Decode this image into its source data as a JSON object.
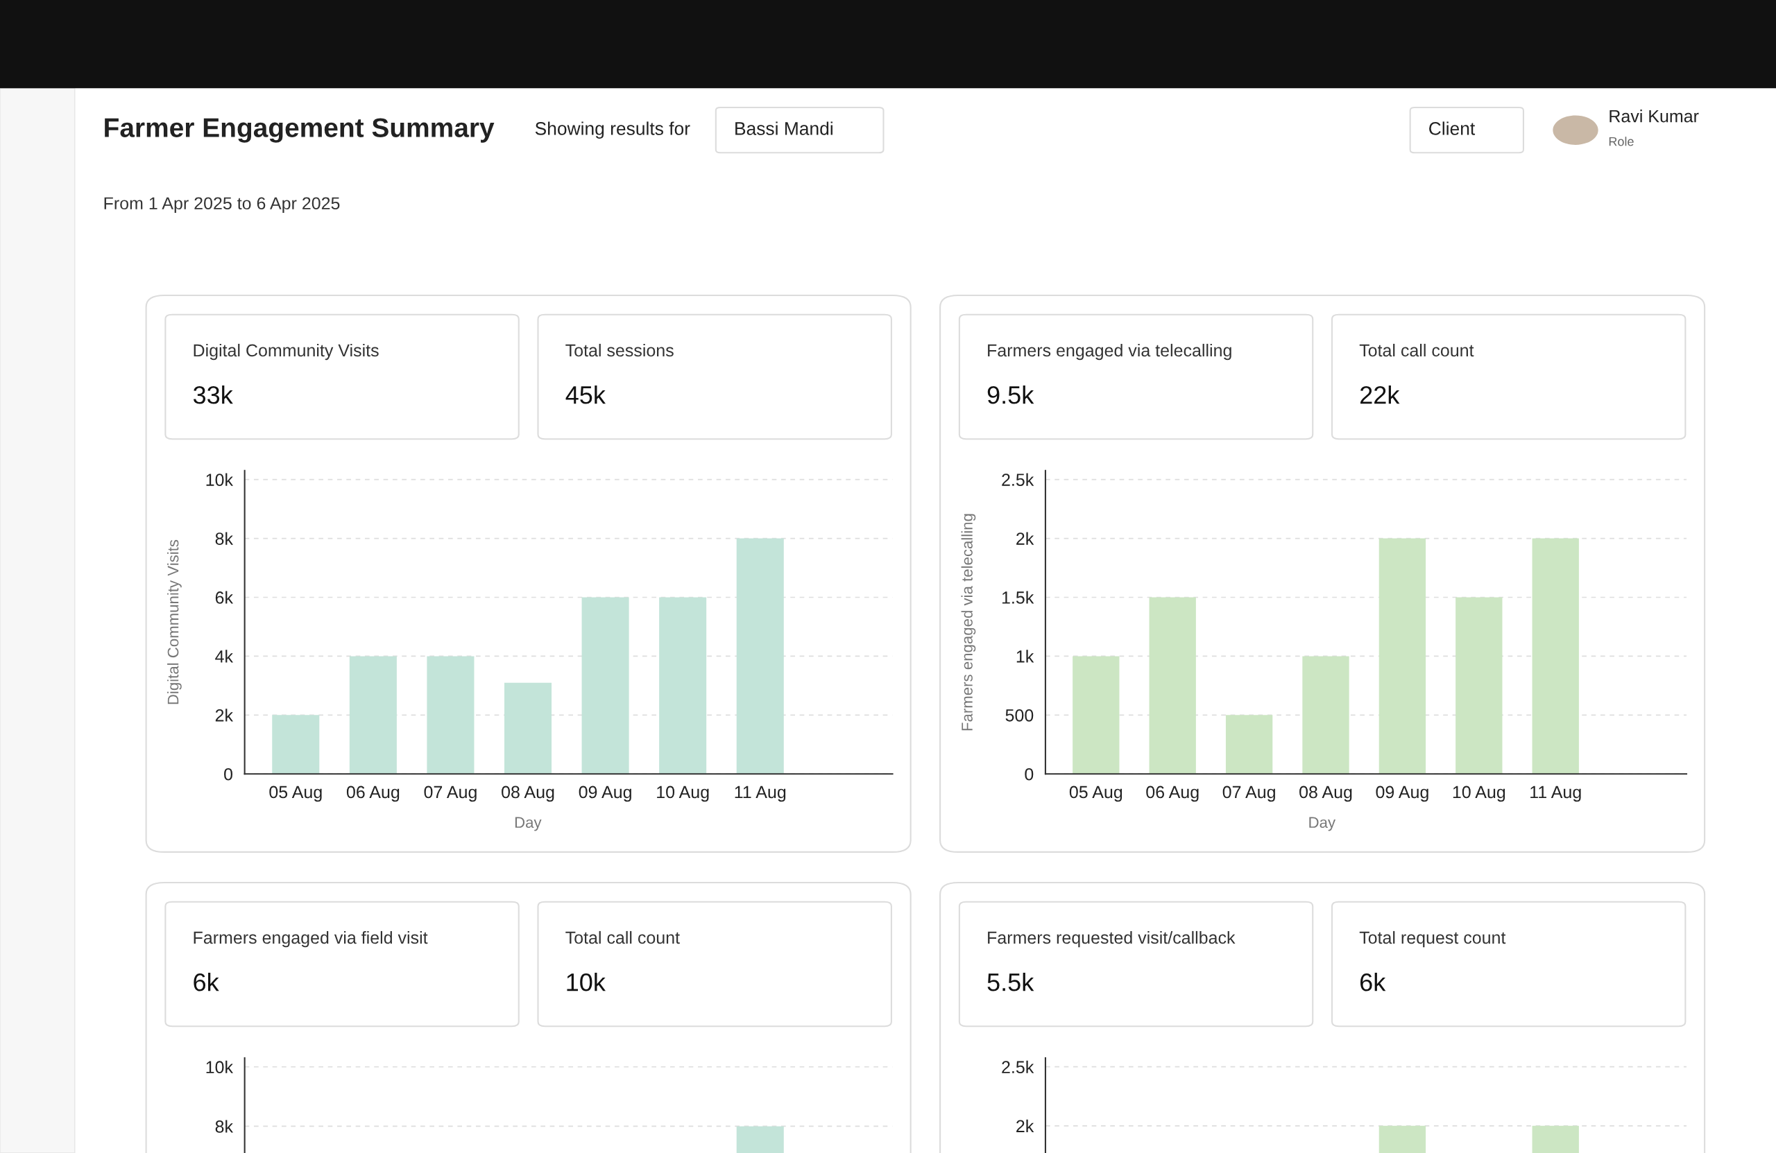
{
  "chart_data": [
    {
      "type": "other",
      "title": "Farmer Engagement Summary",
      "annotations": [
        "Showing results for",
        "Bassi Mandi",
        "Client",
        "Ravi Kumar",
        "Role",
        "From 1 Apr 2025 to 6 Apr 2025"
      ]
    },
    {
      "type": "bar",
      "annotations": [
        "Digital Community Visits",
        "33k",
        "Total sessions",
        "45k"
      ],
      "categories": [
        "05 Aug",
        "06 Aug",
        "07 Aug",
        "08 Aug",
        "09 Aug",
        "10 Aug",
        "11 Aug"
      ],
      "values": [
        2000,
        4000,
        4000,
        3100,
        6000,
        6000,
        8000
      ],
      "color": "#c3e4d9",
      "ylim": [
        0,
        10300
      ],
      "yticks": [
        0,
        {
          "value": 2000,
          "label": "2k"
        },
        {
          "value": 4000,
          "label": "4k"
        },
        {
          "value": 6000,
          "label": "6k"
        },
        {
          "value": 8000,
          "label": "8k"
        },
        {
          "value": 10000,
          "label": "10k"
        }
      ],
      "xlabel": "Day",
      "ylabel": "Digital Community Visits",
      "grid": "y"
    },
    {
      "type": "bar",
      "annotations": [
        "Farmers engaged via telecalling",
        "9.5k",
        "Total call count",
        "22k"
      ],
      "categories": [
        "05 Aug",
        "06 Aug",
        "07 Aug",
        "08 Aug",
        "09 Aug",
        "10 Aug",
        "11 Aug"
      ],
      "values": [
        1000,
        1500,
        500,
        1000,
        2000,
        1500,
        2000
      ],
      "color": "#cce6c3",
      "ylim": [
        0,
        2575
      ],
      "yticks": [
        0,
        500,
        {
          "value": 1000,
          "label": "1k"
        },
        {
          "value": 1500,
          "label": "1.5k"
        },
        {
          "value": 2000,
          "label": "2k"
        },
        {
          "value": 2500,
          "label": "2.5k"
        }
      ],
      "xlabel": "Day",
      "ylabel": "Farmers engaged via telecalling",
      "grid": "y"
    },
    {
      "type": "bar",
      "annotations": [
        "Farmers engaged via field visit",
        "6k",
        "Total call count",
        "10k"
      ],
      "categories": [
        null,
        null,
        null,
        null,
        null,
        null,
        null
      ],
      "values": [
        null,
        null,
        null,
        null,
        null,
        null,
        8000
      ],
      "color": "#c3e4d9",
      "ylim": [
        7100,
        10300
      ],
      "yticks": [
        {
          "value": 8000,
          "label": "8k"
        },
        {
          "value": 10000,
          "label": "10k"
        }
      ],
      "tick_labels": "y",
      "grid": "y"
    },
    {
      "type": "bar",
      "annotations": [
        "Farmers requested visit/callback",
        "5.5k",
        "Total request count",
        "6k"
      ],
      "categories": [
        null,
        null,
        null,
        null,
        null,
        null,
        null
      ],
      "values": [
        null,
        null,
        null,
        null,
        2000,
        null,
        2000
      ],
      "color": "#cce6c3",
      "ylim": [
        1770,
        2575
      ],
      "yticks": [
        {
          "value": 2000,
          "label": "2k"
        },
        {
          "value": 2500,
          "label": "2.5k"
        }
      ],
      "tick_labels": "y",
      "grid": "y"
    }
  ]
}
